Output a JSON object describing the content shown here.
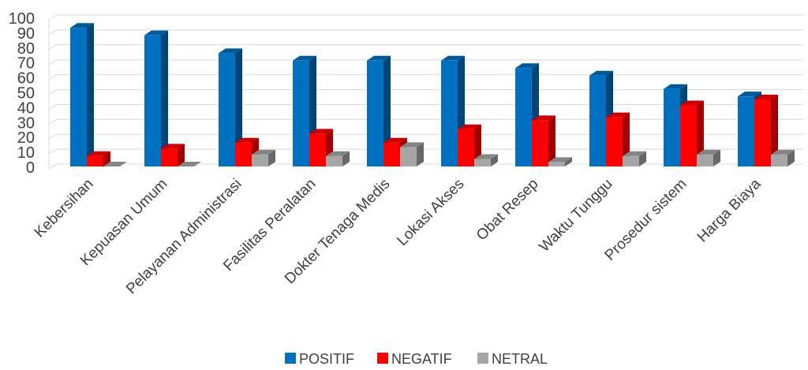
{
  "chart_data": {
    "type": "bar",
    "title": "",
    "xlabel": "",
    "ylabel": "",
    "ylim": [
      0,
      100
    ],
    "yticks": [
      0,
      10,
      20,
      30,
      40,
      50,
      60,
      70,
      80,
      90,
      100
    ],
    "grid": true,
    "legend_position": "bottom",
    "categories": [
      "Kebersihan",
      "Kepuasan Umum",
      "Pelayanan Administrasi",
      "Fasilitas Peralatan",
      "Dokter Tenaga Medis",
      "Lokasi Akses",
      "Obat Resep",
      "Waktu Tunggu",
      "Prosedur sistem",
      "Harga Biaya"
    ],
    "series": [
      {
        "name": "POSITIF",
        "color": "#0070C0",
        "values": [
          93,
          88,
          76,
          71,
          71,
          71,
          66,
          61,
          52,
          47
        ]
      },
      {
        "name": "NEGATIF",
        "color": "#FF0000",
        "values": [
          7,
          12,
          16,
          22,
          16,
          25,
          31,
          33,
          41,
          45
        ]
      },
      {
        "name": "NETRAL",
        "color": "#A6A6A6",
        "values": [
          0,
          0,
          8,
          7,
          13,
          5,
          3,
          7,
          8,
          8
        ]
      }
    ]
  }
}
